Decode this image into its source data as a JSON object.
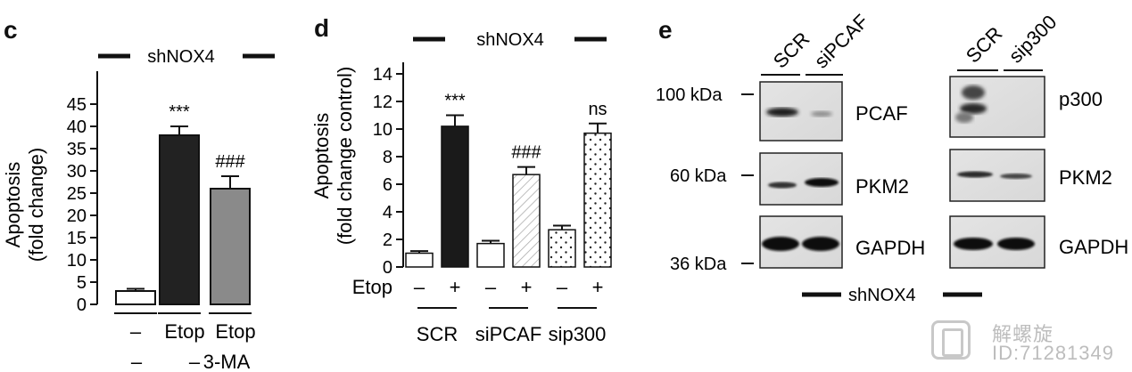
{
  "panels": {
    "c": {
      "letter": "c",
      "group_label": "shNOX4",
      "ylabel_line1": "Apoptosis",
      "ylabel_line2": "(fold change)",
      "row1": [
        "–",
        "Etop",
        "Etop"
      ],
      "row2": [
        "–",
        "–",
        "3-MA"
      ],
      "significance": [
        "",
        "***",
        "###"
      ]
    },
    "d": {
      "letter": "d",
      "group_label": "shNOX4",
      "ylabel_line1": "Apoptosis",
      "ylabel_line2": "(fold change control)",
      "etop_label": "Etop",
      "etop_signs": [
        "–",
        "+",
        "–",
        "+",
        "–",
        "+"
      ],
      "groups": [
        "SCR",
        "siPCAF",
        "sip300"
      ],
      "significance": [
        "",
        "***",
        "",
        "###",
        "",
        "ns"
      ]
    },
    "e": {
      "letter": "e",
      "left_lanes": [
        "SCR",
        "siPCAF"
      ],
      "right_lanes": [
        "SCR",
        "sip300"
      ],
      "markers": [
        "100 kDa",
        "60 kDa",
        "36 kDa"
      ],
      "left_proteins": [
        "PCAF",
        "PKM2",
        "GAPDH"
      ],
      "right_proteins": [
        "p300",
        "PKM2",
        "GAPDH"
      ],
      "group_label": "shNOX4"
    }
  },
  "chart_data": [
    {
      "panel": "c",
      "type": "bar",
      "categories": [
        "– / –",
        "Etop / –",
        "Etop / 3-MA"
      ],
      "values": [
        3,
        38,
        26
      ],
      "errors": [
        0.5,
        2,
        2.8
      ],
      "ylim": [
        0,
        45
      ],
      "yticks": [
        0,
        5,
        10,
        15,
        20,
        25,
        30,
        35,
        40,
        45
      ],
      "colors": [
        "#ffffff",
        "#222222",
        "#8a8a8a"
      ],
      "significance": [
        "",
        "***",
        "###"
      ]
    },
    {
      "panel": "d",
      "type": "bar",
      "categories": [
        "SCR –",
        "SCR +",
        "siPCAF –",
        "siPCAF +",
        "sip300 –",
        "sip300 +"
      ],
      "values": [
        1,
        10.2,
        1.7,
        6.7,
        2.7,
        9.7
      ],
      "errors": [
        0.15,
        0.8,
        0.2,
        0.55,
        0.3,
        0.7
      ],
      "ylim": [
        0,
        14
      ],
      "yticks": [
        0,
        2,
        4,
        6,
        8,
        10,
        12,
        14
      ],
      "fills": [
        "white",
        "black",
        "white",
        "hatch",
        "dots",
        "dots"
      ],
      "significance": [
        "",
        "***",
        "",
        "###",
        "",
        "ns"
      ]
    }
  ],
  "watermark": {
    "name": "解螺旋",
    "id": "ID:71281349"
  }
}
